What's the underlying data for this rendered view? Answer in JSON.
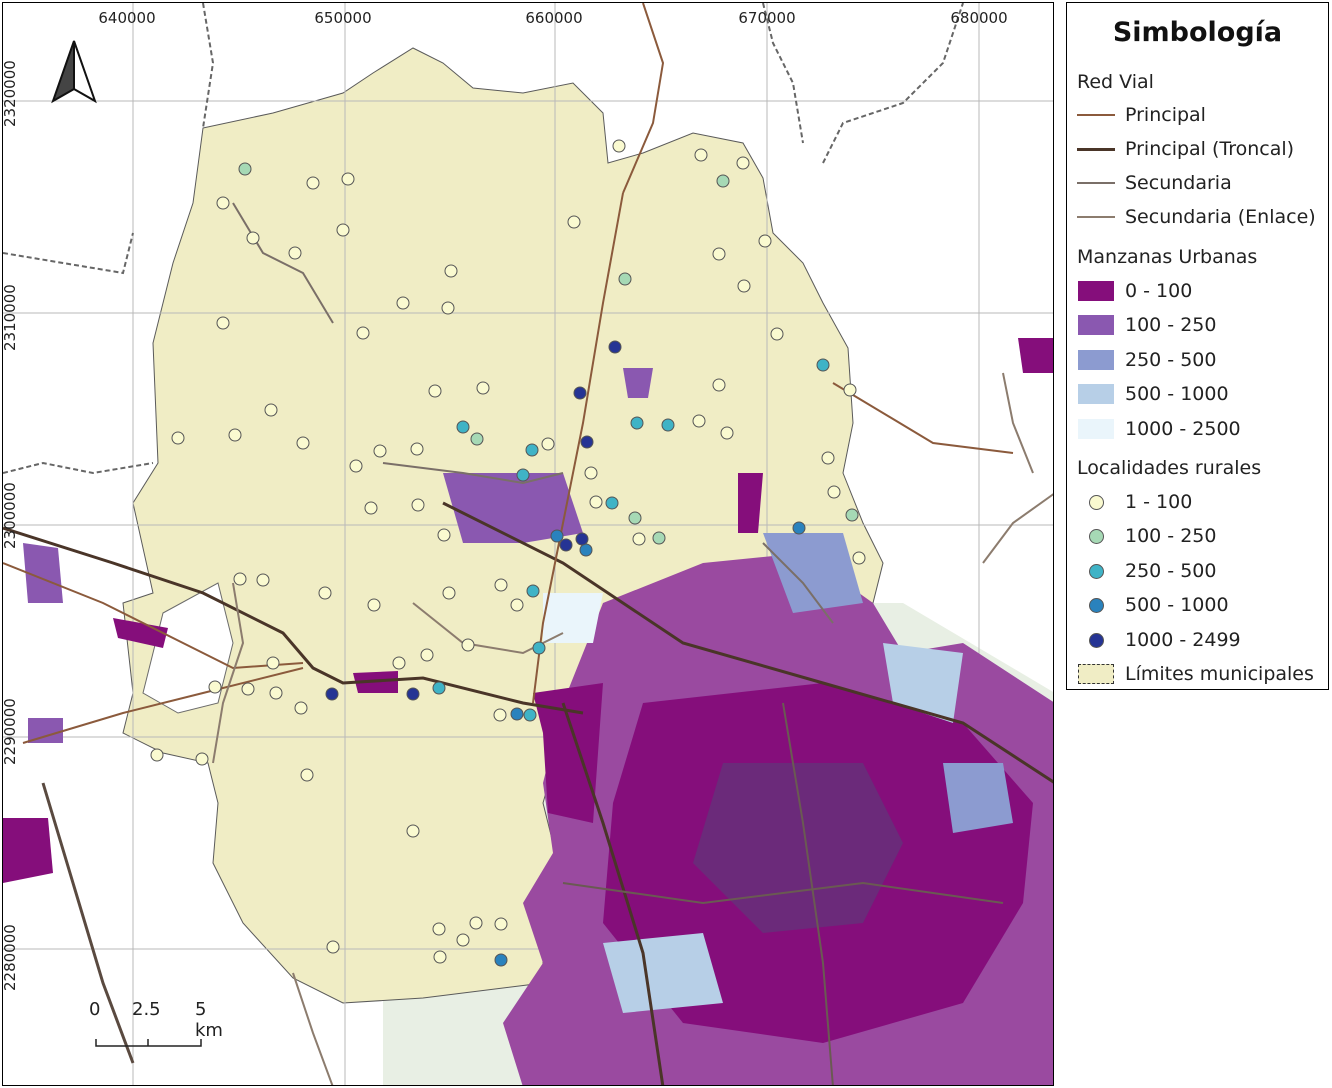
{
  "map": {
    "x_labels": [
      "640000",
      "650000",
      "660000",
      "670000",
      "680000"
    ],
    "y_labels": [
      "2320000",
      "2310000",
      "2300000",
      "2290000",
      "2280000"
    ],
    "scale": {
      "labels": [
        "0",
        "2.5",
        "5 km"
      ]
    },
    "colors": {
      "municipal_fill": "#f0edc5",
      "background": "#e9efe6",
      "road_principal": "#8b5a3c",
      "road_troncal": "#4a3528",
      "road_secundaria": "#7a6f68",
      "road_enlace": "#8c7c6e",
      "state_boundary": "#666666"
    }
  },
  "legend": {
    "title": "Simbología",
    "red_vial": {
      "heading": "Red Vial",
      "items": [
        {
          "label": "Principal",
          "color": "#8b5a3c"
        },
        {
          "label": "Principal (Troncal)",
          "color": "#4a3528"
        },
        {
          "label": "Secundaria",
          "color": "#7a6f68"
        },
        {
          "label": "Secundaria (Enlace)",
          "color": "#8c7c6e"
        }
      ]
    },
    "manzanas": {
      "heading": "Manzanas Urbanas",
      "items": [
        {
          "label": "0 - 100",
          "color": "#850e7b"
        },
        {
          "label": "100 - 250",
          "color": "#8a58b0"
        },
        {
          "label": "250 - 500",
          "color": "#8c9bd0"
        },
        {
          "label": "500 - 1000",
          "color": "#b7cfe7"
        },
        {
          "label": "1000 - 2500",
          "color": "#eaf5fb"
        }
      ]
    },
    "localidades": {
      "heading": "Localidades rurales",
      "items": [
        {
          "label": "1 - 100",
          "color": "#fafad0"
        },
        {
          "label": "100 - 250",
          "color": "#a6d9b5"
        },
        {
          "label": "250 - 500",
          "color": "#3fb3c6"
        },
        {
          "label": "500 - 1000",
          "color": "#2a82bd"
        },
        {
          "label": "1000 - 2499",
          "color": "#253494"
        }
      ]
    },
    "limites": {
      "label": "Límites municipales",
      "color": "#f0edc5"
    }
  }
}
